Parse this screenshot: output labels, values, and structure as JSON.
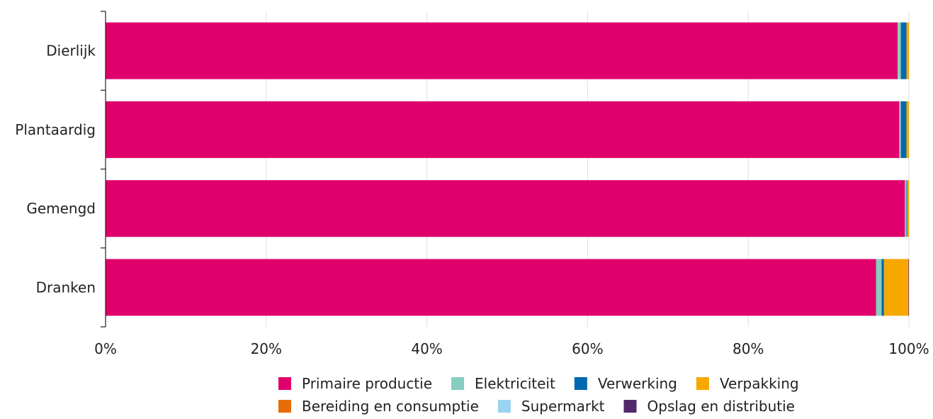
{
  "chart_data": {
    "type": "bar",
    "orientation": "horizontal",
    "stacked": true,
    "categories": [
      "Dierlijk",
      "Plantaardig",
      "Gemengd",
      "Dranken"
    ],
    "x_ticks": [
      "0%",
      "20%",
      "40%",
      "60%",
      "80%",
      "100%"
    ],
    "xlim": [
      0,
      100
    ],
    "grid": true,
    "legend_position": "bottom",
    "series": [
      {
        "name": "Primaire productie",
        "color": "#e0006c",
        "values": [
          98.6,
          98.8,
          99.5,
          95.9
        ]
      },
      {
        "name": "Elektriciteit",
        "color": "#87cdc0",
        "values": [
          0.4,
          0.2,
          0.2,
          0.7
        ]
      },
      {
        "name": "Verwerking",
        "color": "#0068b0",
        "values": [
          0.7,
          0.7,
          0.1,
          0.3
        ]
      },
      {
        "name": "Verpakking",
        "color": "#f7a800",
        "values": [
          0.3,
          0.3,
          0.2,
          3.0
        ]
      },
      {
        "name": "Bereiding en consumptie",
        "color": "#e86c08",
        "values": [
          0.0,
          0.0,
          0.0,
          0.05
        ]
      },
      {
        "name": "Supermarkt",
        "color": "#9ad3f0",
        "values": [
          0.0,
          0.0,
          0.0,
          0.0
        ]
      },
      {
        "name": "Opslag en distributie",
        "color": "#502a6a",
        "values": [
          0.0,
          0.0,
          0.0,
          0.05
        ]
      }
    ]
  }
}
